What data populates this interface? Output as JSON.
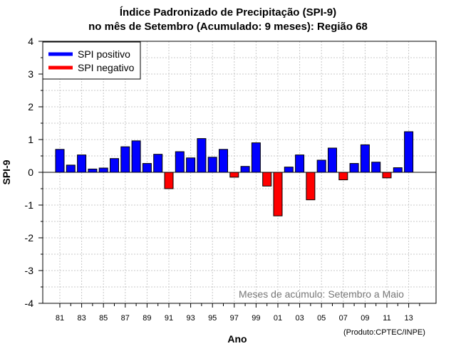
{
  "chart_data": {
    "type": "bar",
    "title": "Índice Padronizado de Precipitação (SPI-9)",
    "subtitle": "no mês de Setembro (Acumulado: 9 meses): Região 68",
    "xlabel": "Ano",
    "ylabel": "SPI-9",
    "ylim": [
      -4,
      4
    ],
    "yticks": [
      "-4",
      "-3",
      "-2",
      "-1",
      "0",
      "1",
      "2",
      "3",
      "4"
    ],
    "grid": true,
    "legend_position": "top-left",
    "legend": [
      {
        "label": "SPI positivo",
        "color": "#0000ff"
      },
      {
        "label": "SPI negativo",
        "color": "#ff0000"
      }
    ],
    "annotation": "Meses de acúmulo: Setembro a Maio",
    "categories": [
      "81",
      "82",
      "83",
      "84",
      "85",
      "86",
      "87",
      "88",
      "89",
      "90",
      "91",
      "92",
      "93",
      "94",
      "95",
      "96",
      "97",
      "98",
      "99",
      "00",
      "01",
      "02",
      "03",
      "04",
      "05",
      "06",
      "07",
      "08",
      "09",
      "10",
      "11",
      "12",
      "13"
    ],
    "xtick_labels": [
      "81",
      "83",
      "85",
      "87",
      "89",
      "91",
      "93",
      "95",
      "97",
      "99",
      "01",
      "03",
      "05",
      "07",
      "09",
      "11",
      "13"
    ],
    "values": [
      0.7,
      0.22,
      0.53,
      0.1,
      0.13,
      0.42,
      0.78,
      0.96,
      0.27,
      0.55,
      -0.5,
      0.63,
      0.44,
      1.03,
      0.46,
      0.7,
      -0.15,
      0.18,
      0.9,
      -0.42,
      -1.33,
      0.16,
      0.53,
      -0.84,
      0.37,
      0.74,
      -0.23,
      0.27,
      0.84,
      0.31,
      -0.17,
      0.14,
      1.24
    ]
  },
  "footer": {
    "credit": "(Produto:CPTEC/INPE)"
  }
}
